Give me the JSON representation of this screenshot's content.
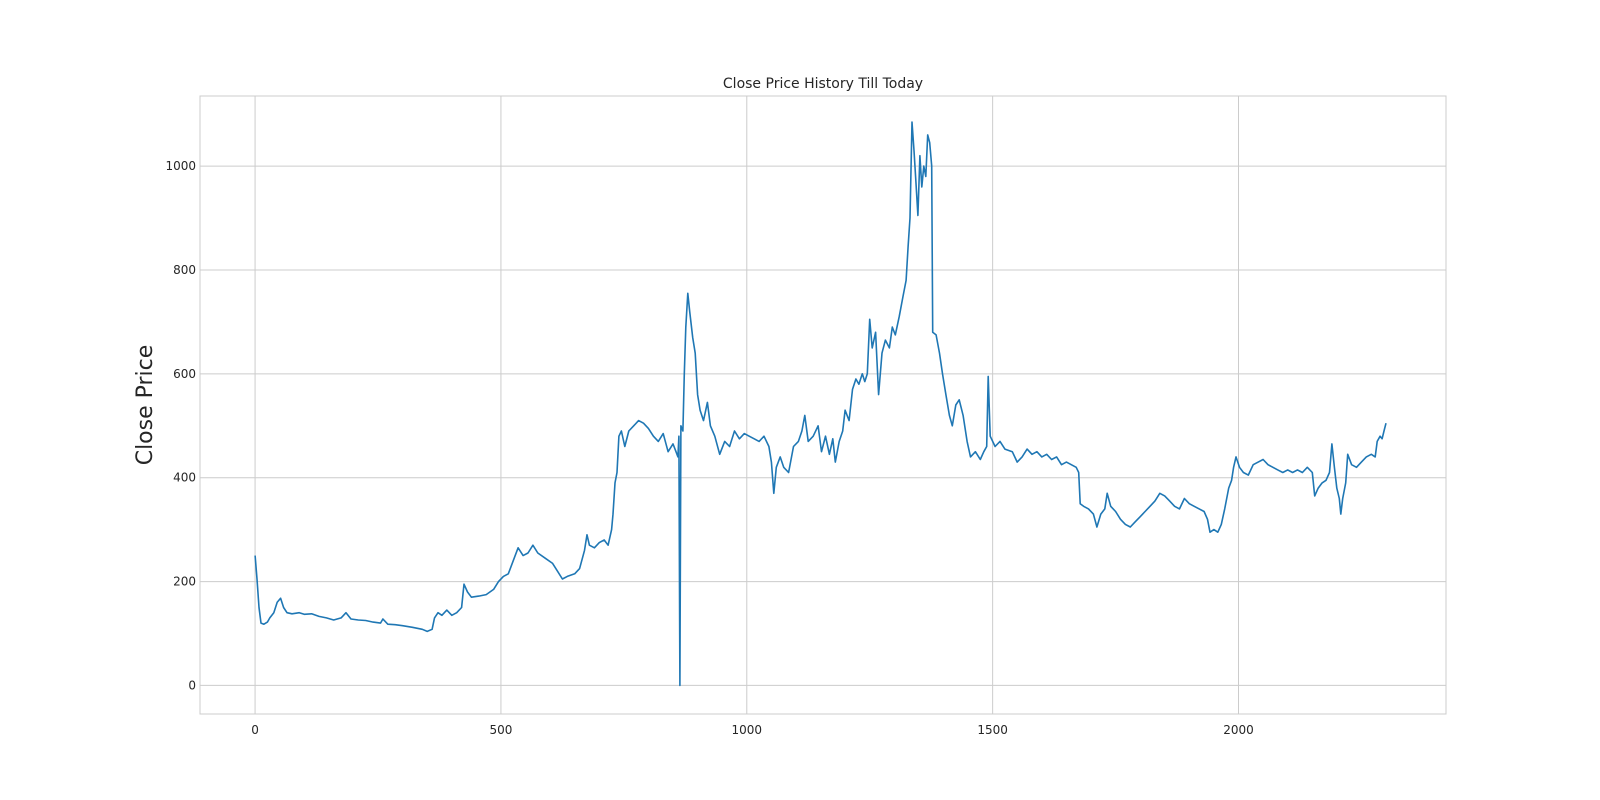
{
  "chart_data": {
    "type": "line",
    "title": "Close Price History Till Today",
    "xlabel": "",
    "ylabel": "Close Price",
    "xlim": [
      -112,
      2422
    ],
    "ylim": [
      -55,
      1135
    ],
    "x_ticks": [
      0,
      500,
      1000,
      1500,
      2000
    ],
    "y_ticks": [
      0,
      200,
      400,
      600,
      800,
      1000
    ],
    "grid": true,
    "line_color": "#1f77b4",
    "series": [
      {
        "name": "",
        "points": [
          [
            0,
            250
          ],
          [
            4,
            205
          ],
          [
            8,
            150
          ],
          [
            12,
            120
          ],
          [
            18,
            118
          ],
          [
            25,
            122
          ],
          [
            30,
            130
          ],
          [
            38,
            140
          ],
          [
            45,
            160
          ],
          [
            52,
            168
          ],
          [
            58,
            150
          ],
          [
            65,
            140
          ],
          [
            75,
            138
          ],
          [
            90,
            140
          ],
          [
            100,
            137
          ],
          [
            115,
            138
          ],
          [
            130,
            133
          ],
          [
            145,
            130
          ],
          [
            160,
            126
          ],
          [
            175,
            130
          ],
          [
            185,
            140
          ],
          [
            195,
            128
          ],
          [
            210,
            126
          ],
          [
            225,
            125
          ],
          [
            240,
            122
          ],
          [
            255,
            120
          ],
          [
            260,
            128
          ],
          [
            270,
            118
          ],
          [
            285,
            117
          ],
          [
            300,
            115
          ],
          [
            320,
            112
          ],
          [
            340,
            108
          ],
          [
            350,
            104
          ],
          [
            360,
            108
          ],
          [
            365,
            130
          ],
          [
            372,
            140
          ],
          [
            380,
            135
          ],
          [
            390,
            145
          ],
          [
            400,
            135
          ],
          [
            410,
            140
          ],
          [
            420,
            150
          ],
          [
            425,
            195
          ],
          [
            432,
            180
          ],
          [
            440,
            170
          ],
          [
            455,
            172
          ],
          [
            470,
            175
          ],
          [
            485,
            185
          ],
          [
            495,
            200
          ],
          [
            505,
            210
          ],
          [
            515,
            215
          ],
          [
            525,
            240
          ],
          [
            535,
            265
          ],
          [
            545,
            250
          ],
          [
            555,
            255
          ],
          [
            565,
            270
          ],
          [
            575,
            255
          ],
          [
            590,
            245
          ],
          [
            605,
            235
          ],
          [
            615,
            220
          ],
          [
            625,
            205
          ],
          [
            635,
            210
          ],
          [
            650,
            215
          ],
          [
            660,
            225
          ],
          [
            670,
            260
          ],
          [
            675,
            290
          ],
          [
            680,
            270
          ],
          [
            690,
            265
          ],
          [
            700,
            275
          ],
          [
            710,
            280
          ],
          [
            718,
            270
          ],
          [
            725,
            300
          ],
          [
            728,
            330
          ],
          [
            732,
            390
          ],
          [
            736,
            410
          ],
          [
            740,
            480
          ],
          [
            745,
            490
          ],
          [
            752,
            460
          ],
          [
            760,
            490
          ],
          [
            770,
            500
          ],
          [
            780,
            510
          ],
          [
            790,
            505
          ],
          [
            800,
            495
          ],
          [
            810,
            480
          ],
          [
            820,
            470
          ],
          [
            830,
            485
          ],
          [
            840,
            450
          ],
          [
            850,
            465
          ],
          [
            856,
            450
          ],
          [
            860,
            440
          ],
          [
            862,
            480
          ],
          [
            864,
            0
          ],
          [
            866,
            500
          ],
          [
            870,
            490
          ],
          [
            873,
            600
          ],
          [
            876,
            690
          ],
          [
            880,
            755
          ],
          [
            884,
            720
          ],
          [
            890,
            670
          ],
          [
            895,
            640
          ],
          [
            900,
            560
          ],
          [
            905,
            530
          ],
          [
            912,
            510
          ],
          [
            920,
            545
          ],
          [
            926,
            500
          ],
          [
            935,
            480
          ],
          [
            945,
            445
          ],
          [
            955,
            470
          ],
          [
            965,
            460
          ],
          [
            975,
            490
          ],
          [
            985,
            475
          ],
          [
            995,
            485
          ],
          [
            1005,
            480
          ],
          [
            1015,
            475
          ],
          [
            1025,
            470
          ],
          [
            1035,
            480
          ],
          [
            1045,
            460
          ],
          [
            1050,
            430
          ],
          [
            1055,
            370
          ],
          [
            1060,
            420
          ],
          [
            1068,
            440
          ],
          [
            1075,
            420
          ],
          [
            1085,
            410
          ],
          [
            1095,
            460
          ],
          [
            1105,
            470
          ],
          [
            1112,
            490
          ],
          [
            1118,
            520
          ],
          [
            1125,
            470
          ],
          [
            1135,
            480
          ],
          [
            1145,
            500
          ],
          [
            1152,
            450
          ],
          [
            1160,
            480
          ],
          [
            1168,
            445
          ],
          [
            1175,
            475
          ],
          [
            1180,
            430
          ],
          [
            1188,
            470
          ],
          [
            1195,
            490
          ],
          [
            1200,
            530
          ],
          [
            1208,
            510
          ],
          [
            1215,
            570
          ],
          [
            1222,
            590
          ],
          [
            1228,
            580
          ],
          [
            1235,
            600
          ],
          [
            1240,
            585
          ],
          [
            1245,
            600
          ],
          [
            1250,
            705
          ],
          [
            1255,
            650
          ],
          [
            1262,
            680
          ],
          [
            1268,
            560
          ],
          [
            1275,
            640
          ],
          [
            1282,
            665
          ],
          [
            1290,
            650
          ],
          [
            1296,
            690
          ],
          [
            1302,
            675
          ],
          [
            1310,
            710
          ],
          [
            1318,
            750
          ],
          [
            1324,
            780
          ],
          [
            1328,
            845
          ],
          [
            1332,
            900
          ],
          [
            1336,
            1085
          ],
          [
            1340,
            1030
          ],
          [
            1344,
            970
          ],
          [
            1348,
            905
          ],
          [
            1352,
            1020
          ],
          [
            1356,
            960
          ],
          [
            1360,
            1000
          ],
          [
            1364,
            980
          ],
          [
            1368,
            1060
          ],
          [
            1372,
            1045
          ],
          [
            1376,
            1000
          ],
          [
            1378,
            680
          ],
          [
            1385,
            675
          ],
          [
            1392,
            640
          ],
          [
            1398,
            600
          ],
          [
            1405,
            560
          ],
          [
            1412,
            520
          ],
          [
            1418,
            500
          ],
          [
            1425,
            540
          ],
          [
            1432,
            550
          ],
          [
            1440,
            520
          ],
          [
            1448,
            470
          ],
          [
            1455,
            440
          ],
          [
            1465,
            450
          ],
          [
            1475,
            435
          ],
          [
            1482,
            450
          ],
          [
            1488,
            460
          ],
          [
            1491,
            595
          ],
          [
            1495,
            480
          ],
          [
            1505,
            460
          ],
          [
            1515,
            470
          ],
          [
            1525,
            455
          ],
          [
            1540,
            450
          ],
          [
            1550,
            430
          ],
          [
            1560,
            440
          ],
          [
            1570,
            455
          ],
          [
            1580,
            445
          ],
          [
            1590,
            450
          ],
          [
            1600,
            440
          ],
          [
            1610,
            445
          ],
          [
            1620,
            435
          ],
          [
            1630,
            440
          ],
          [
            1640,
            425
          ],
          [
            1650,
            430
          ],
          [
            1660,
            425
          ],
          [
            1670,
            420
          ],
          [
            1675,
            410
          ],
          [
            1678,
            350
          ],
          [
            1685,
            345
          ],
          [
            1695,
            340
          ],
          [
            1705,
            330
          ],
          [
            1712,
            305
          ],
          [
            1720,
            330
          ],
          [
            1728,
            340
          ],
          [
            1733,
            370
          ],
          [
            1740,
            345
          ],
          [
            1750,
            335
          ],
          [
            1760,
            320
          ],
          [
            1770,
            310
          ],
          [
            1780,
            305
          ],
          [
            1790,
            315
          ],
          [
            1800,
            325
          ],
          [
            1810,
            335
          ],
          [
            1820,
            345
          ],
          [
            1830,
            355
          ],
          [
            1840,
            370
          ],
          [
            1850,
            365
          ],
          [
            1860,
            355
          ],
          [
            1870,
            345
          ],
          [
            1880,
            340
          ],
          [
            1890,
            360
          ],
          [
            1900,
            350
          ],
          [
            1910,
            345
          ],
          [
            1920,
            340
          ],
          [
            1930,
            335
          ],
          [
            1937,
            320
          ],
          [
            1942,
            295
          ],
          [
            1950,
            300
          ],
          [
            1958,
            295
          ],
          [
            1965,
            310
          ],
          [
            1972,
            340
          ],
          [
            1980,
            380
          ],
          [
            1986,
            395
          ],
          [
            1990,
            420
          ],
          [
            1995,
            440
          ],
          [
            2002,
            420
          ],
          [
            2010,
            410
          ],
          [
            2020,
            405
          ],
          [
            2030,
            425
          ],
          [
            2040,
            430
          ],
          [
            2050,
            435
          ],
          [
            2060,
            425
          ],
          [
            2070,
            420
          ],
          [
            2080,
            415
          ],
          [
            2090,
            410
          ],
          [
            2100,
            415
          ],
          [
            2110,
            410
          ],
          [
            2120,
            415
          ],
          [
            2130,
            410
          ],
          [
            2140,
            420
          ],
          [
            2150,
            410
          ],
          [
            2155,
            365
          ],
          [
            2162,
            380
          ],
          [
            2170,
            390
          ],
          [
            2178,
            395
          ],
          [
            2185,
            410
          ],
          [
            2190,
            465
          ],
          [
            2195,
            420
          ],
          [
            2200,
            380
          ],
          [
            2205,
            360
          ],
          [
            2208,
            330
          ],
          [
            2212,
            360
          ],
          [
            2218,
            390
          ],
          [
            2222,
            445
          ],
          [
            2230,
            425
          ],
          [
            2240,
            420
          ],
          [
            2250,
            430
          ],
          [
            2260,
            440
          ],
          [
            2270,
            445
          ],
          [
            2278,
            440
          ],
          [
            2282,
            470
          ],
          [
            2288,
            480
          ],
          [
            2292,
            475
          ],
          [
            2296,
            490
          ],
          [
            2300,
            505
          ]
        ]
      }
    ]
  }
}
